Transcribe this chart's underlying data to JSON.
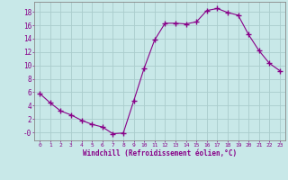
{
  "x": [
    0,
    1,
    2,
    3,
    4,
    5,
    6,
    7,
    8,
    9,
    10,
    11,
    12,
    13,
    14,
    15,
    16,
    17,
    18,
    19,
    20,
    21,
    22,
    23
  ],
  "y": [
    5.8,
    4.4,
    3.2,
    2.6,
    1.8,
    1.2,
    0.8,
    -0.2,
    -0.1,
    4.7,
    9.6,
    13.8,
    16.3,
    16.3,
    16.2,
    16.5,
    18.2,
    18.5,
    17.9,
    17.5,
    14.6,
    12.2,
    10.3,
    9.2
  ],
  "line_color": "#880088",
  "marker": "+",
  "marker_size": 4,
  "background_color": "#c8e8e8",
  "grid_color": "#aacccc",
  "xlabel": "Windchill (Refroidissement éolien,°C)",
  "xlabel_color": "#880088",
  "tick_color": "#880088",
  "yticks": [
    0,
    2,
    4,
    6,
    8,
    10,
    12,
    14,
    16,
    18
  ],
  "ytick_labels": [
    "-0",
    "2",
    "4",
    "6",
    "8",
    "10",
    "12",
    "14",
    "16",
    "18"
  ],
  "ylim": [
    -1.2,
    19.5
  ],
  "xlim": [
    -0.5,
    23.5
  ],
  "xtick_labels": [
    "0",
    "1",
    "2",
    "3",
    "4",
    "5",
    "6",
    "7",
    "8",
    "9",
    "10",
    "11",
    "12",
    "13",
    "14",
    "15",
    "16",
    "17",
    "18",
    "19",
    "20",
    "21",
    "22",
    "23"
  ]
}
